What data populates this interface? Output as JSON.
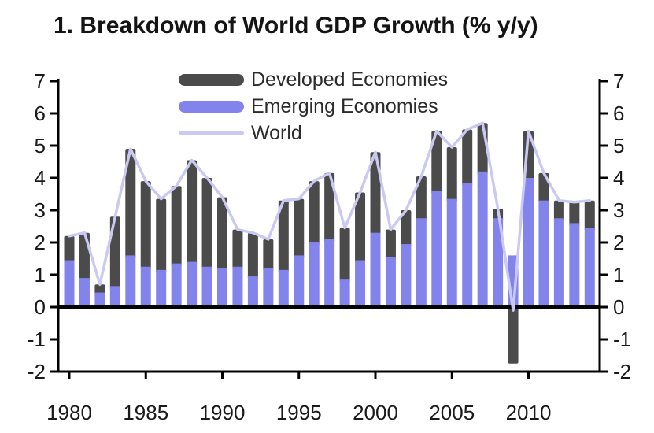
{
  "title": "1. Breakdown of World GDP Growth (% y/y)",
  "legend": {
    "items": [
      {
        "label": "Developed Economies",
        "type": "bar",
        "color": "#4b4b4b"
      },
      {
        "label": "Emerging Economies",
        "type": "bar",
        "color": "#8383ec"
      },
      {
        "label": "World",
        "type": "line",
        "color": "#c9c9f2"
      }
    ]
  },
  "axes": {
    "y_ticks": [
      7,
      6,
      5,
      4,
      3,
      2,
      1,
      0,
      -1,
      -2
    ],
    "x_ticks": [
      1980,
      1985,
      1990,
      1995,
      2000,
      2005,
      2010
    ],
    "ylim": [
      -2,
      7
    ]
  },
  "chart_data": {
    "type": "bar",
    "subtype": "stacked-bars-with-line-overlay",
    "title": "1. Breakdown of World GDP Growth (% y/y)",
    "xlabel": "",
    "ylabel": "",
    "ylim": [
      -2,
      7
    ],
    "grid": false,
    "legend_position": "top-center",
    "x": [
      1980,
      1981,
      1982,
      1983,
      1984,
      1985,
      1986,
      1987,
      1988,
      1989,
      1990,
      1991,
      1992,
      1993,
      1994,
      1995,
      1996,
      1997,
      1998,
      1999,
      2000,
      2001,
      2002,
      2003,
      2004,
      2005,
      2006,
      2007,
      2008,
      2009,
      2010,
      2011,
      2012,
      2013,
      2014
    ],
    "series": [
      {
        "name": "Developed Economies",
        "color": "#4b4b4b",
        "values": [
          0.75,
          1.4,
          0.25,
          2.15,
          3.3,
          2.65,
          2.2,
          2.4,
          3.15,
          2.75,
          2.2,
          1.15,
          1.35,
          0.9,
          2.15,
          1.75,
          1.9,
          2.05,
          1.6,
          2.1,
          2.5,
          0.85,
          1.05,
          1.3,
          1.85,
          1.6,
          1.65,
          1.5,
          0.3,
          -1.75,
          1.45,
          0.85,
          0.55,
          0.65,
          0.85
        ]
      },
      {
        "name": "Emerging Economies",
        "color": "#8383ec",
        "values": [
          1.45,
          0.9,
          0.45,
          0.65,
          1.6,
          1.25,
          1.15,
          1.35,
          1.4,
          1.25,
          1.2,
          1.25,
          0.95,
          1.2,
          1.15,
          1.6,
          2.0,
          2.1,
          0.85,
          1.45,
          2.3,
          1.55,
          1.95,
          2.75,
          3.6,
          3.35,
          3.85,
          4.2,
          2.75,
          1.6,
          4.0,
          3.3,
          2.75,
          2.6,
          2.45
        ]
      }
    ],
    "line_series": {
      "name": "World",
      "color": "#c9c9f2",
      "values": [
        2.2,
        2.3,
        0.7,
        2.8,
        4.9,
        3.9,
        3.35,
        3.75,
        4.55,
        4.0,
        3.4,
        2.4,
        2.3,
        2.1,
        3.3,
        3.35,
        3.9,
        4.15,
        2.45,
        3.55,
        4.8,
        2.4,
        3.0,
        4.05,
        5.45,
        4.95,
        5.5,
        5.7,
        3.05,
        -0.1,
        5.45,
        4.15,
        3.3,
        3.25,
        3.3
      ]
    }
  }
}
